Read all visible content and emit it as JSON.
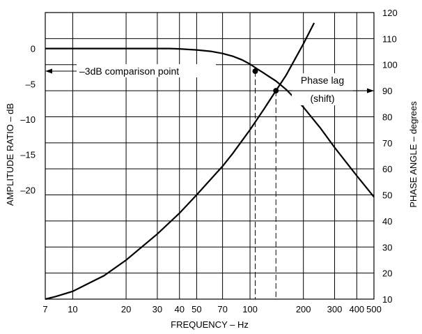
{
  "chart_data": {
    "type": "line",
    "title": "",
    "x_axis": {
      "label": "FREQUENCY – Hz",
      "scale": "log",
      "range": [
        7,
        500
      ],
      "ticks": [
        7,
        10,
        20,
        30,
        40,
        50,
        70,
        100,
        200,
        300,
        400,
        500
      ],
      "tick_labels": [
        "7",
        "10",
        "20",
        "30",
        "40",
        "50",
        "70",
        "100",
        "200",
        "300",
        "400",
        "500"
      ],
      "grid_lines": [
        7,
        10,
        20,
        30,
        40,
        50,
        70,
        100,
        200,
        300,
        400,
        500
      ]
    },
    "y_left": {
      "label": "AMPLITUDE RATIO – dB",
      "grid_range": [
        -35.46,
        5.09
      ],
      "ticks": [
        0,
        -5,
        -10,
        -15,
        -20
      ],
      "tick_labels": [
        "0",
        "–5",
        "–10",
        "–15",
        "–20"
      ]
    },
    "y_right": {
      "label": "PHASE ANGLE – degrees",
      "range": [
        10,
        120
      ],
      "ticks": [
        10,
        20,
        30,
        40,
        50,
        60,
        70,
        80,
        90,
        100,
        110,
        120
      ],
      "tick_labels": [
        "10",
        "20",
        "30",
        "40",
        "50",
        "60",
        "70",
        "80",
        "90",
        "100",
        "110",
        "120"
      ]
    },
    "grid": true,
    "series": [
      {
        "axis": "left",
        "x": [
          7,
          10,
          20,
          30,
          35,
          40,
          50,
          60,
          70,
          80,
          90,
          100,
          110,
          120,
          140,
          160,
          200,
          250,
          300,
          400,
          500
        ],
        "y": [
          0,
          0,
          0,
          0,
          0,
          -0.05,
          -0.2,
          -0.4,
          -0.7,
          -1.1,
          -1.6,
          -2.2,
          -2.9,
          -3.5,
          -4.6,
          -5.8,
          -8.3,
          -11.3,
          -14.0,
          -18.0,
          -21.0
        ]
      },
      {
        "axis": "right",
        "x": [
          7,
          8,
          10,
          15,
          20,
          30,
          40,
          50,
          60,
          70,
          80,
          100,
          120,
          140,
          160,
          200,
          230
        ],
        "y": [
          10,
          11,
          13,
          19,
          25,
          35,
          43,
          50,
          56,
          61,
          66,
          75,
          83,
          90,
          96,
          108,
          116
        ]
      }
    ],
    "annotations": {
      "comparison_label": "–3dB comparison point",
      "phase_label_line1": "Phase lag",
      "phase_label_line2": "(shift)",
      "comparison_point": {
        "x": 107,
        "y_db": -3.2
      },
      "phase_point": {
        "x": 140,
        "y_deg": 90
      }
    }
  }
}
